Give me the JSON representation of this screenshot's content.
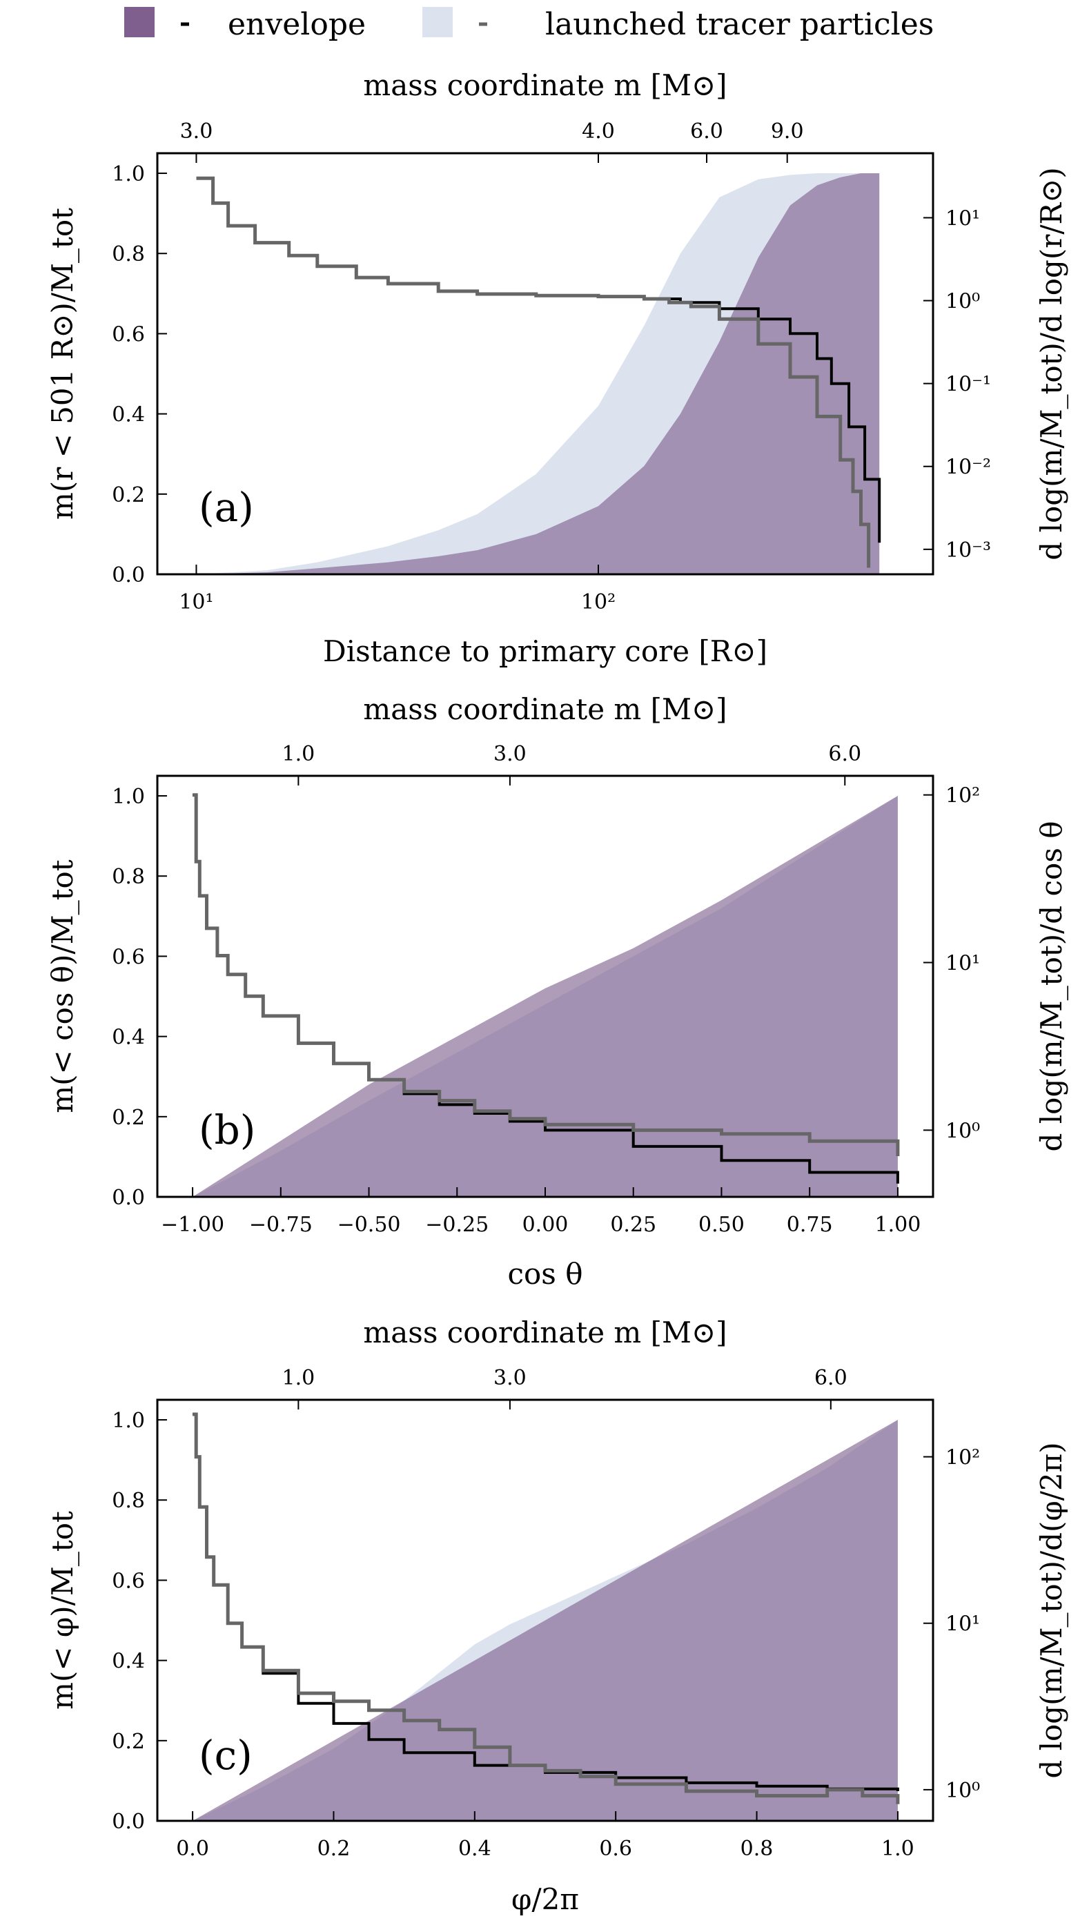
{
  "legend": [
    {
      "label": "envelope",
      "color": "#7e5f8e",
      "line_color": "#000000"
    },
    {
      "label": "launched tracer particles",
      "color": "#dce3ef",
      "line_color": "#666666"
    }
  ],
  "colors": {
    "envelope_fill": "#7e5f8e",
    "tracer_fill": "#dce3ef",
    "overlap_fill": "#9b93b7",
    "envelope_line": "#000000",
    "tracer_line": "#666666"
  },
  "chart_data": [
    {
      "id": "a",
      "type": "area",
      "panel_label": "(a)",
      "top_axis_label": "mass coordinate m [M⊙]",
      "top_ticks": [
        {
          "label": "3.0",
          "x": 10.0
        },
        {
          "label": "4.0",
          "x": 100.0
        },
        {
          "label": "6.0",
          "x": 186.0
        },
        {
          "label": "9.0",
          "x": 295.0
        }
      ],
      "xlabel": "Distance to primary core [R⊙]",
      "ylabel": "m(r < 501 R⊙)/M_tot",
      "y2label": "d log(m/M_tot)/d log(r/R⊙)",
      "xscale": "log",
      "xlim": [
        8.0,
        680.0
      ],
      "ylim": [
        0.0,
        1.05
      ],
      "y2lim": [
        0.0005,
        60.0
      ],
      "x_ticks": [
        {
          "value": 10,
          "label": "10¹"
        },
        {
          "value": 100,
          "label": "10²"
        }
      ],
      "y_ticks": [
        "0.0",
        "0.2",
        "0.4",
        "0.6",
        "0.8",
        "1.0"
      ],
      "y2_ticks": [
        {
          "value": 10,
          "label": "10¹"
        },
        {
          "value": 1,
          "label": "10⁰"
        },
        {
          "value": 0.1,
          "label": "10⁻¹"
        },
        {
          "value": 0.01,
          "label": "10⁻²"
        },
        {
          "value": 0.001,
          "label": "10⁻³"
        }
      ],
      "series": [
        {
          "name": "envelope cumulative",
          "kind": "fill",
          "fill": "#7e5f8e",
          "x": [
            10,
            15,
            20,
            30,
            40,
            50,
            70,
            100,
            130,
            160,
            200,
            250,
            300,
            350,
            400,
            450,
            500
          ],
          "y": [
            0.0,
            0.005,
            0.015,
            0.03,
            0.045,
            0.06,
            0.1,
            0.17,
            0.27,
            0.4,
            0.58,
            0.79,
            0.92,
            0.97,
            0.99,
            1.0,
            1.0
          ]
        },
        {
          "name": "tracer cumulative",
          "kind": "fill",
          "fill": "#dce3ef",
          "x": [
            10,
            15,
            20,
            30,
            40,
            50,
            70,
            100,
            130,
            160,
            200,
            250,
            300,
            350,
            400,
            450,
            500
          ],
          "y": [
            0.0,
            0.01,
            0.03,
            0.07,
            0.11,
            0.15,
            0.25,
            0.42,
            0.62,
            0.8,
            0.94,
            0.985,
            0.996,
            1.0,
            1.0,
            1.0,
            1.0
          ]
        },
        {
          "name": "envelope derivative",
          "kind": "line",
          "axis": "y2",
          "color": "#000000",
          "x": [
            10,
            11,
            12,
            14,
            17,
            20,
            25,
            30,
            40,
            50,
            70,
            100,
            130,
            160,
            200,
            250,
            300,
            350,
            380,
            420,
            460,
            500
          ],
          "y": [
            30,
            15,
            8,
            5,
            3.5,
            2.6,
            1.9,
            1.6,
            1.3,
            1.2,
            1.15,
            1.12,
            1.05,
            0.95,
            0.8,
            0.6,
            0.4,
            0.2,
            0.1,
            0.03,
            0.007,
            0.0012
          ]
        },
        {
          "name": "tracer derivative",
          "kind": "line",
          "axis": "y2",
          "color": "#666666",
          "x": [
            10,
            11,
            12,
            14,
            17,
            20,
            25,
            30,
            40,
            50,
            70,
            100,
            130,
            150,
            170,
            200,
            250,
            300,
            350,
            400,
            430,
            450,
            470
          ],
          "y": [
            30,
            15,
            8,
            5,
            3.5,
            2.6,
            1.9,
            1.6,
            1.3,
            1.2,
            1.15,
            1.12,
            1.05,
            0.95,
            0.85,
            0.6,
            0.3,
            0.12,
            0.04,
            0.012,
            0.005,
            0.002,
            0.0006
          ]
        }
      ]
    },
    {
      "id": "b",
      "type": "area",
      "panel_label": "(b)",
      "top_axis_label": "mass coordinate m [M⊙]",
      "top_ticks": [
        {
          "label": "1.0",
          "x": -0.7
        },
        {
          "label": "3.0",
          "x": -0.1
        },
        {
          "label": "6.0",
          "x": 0.85
        }
      ],
      "xlabel": "cos θ",
      "ylabel": "m(< cos θ)/M_tot",
      "y2label": "d log(m/M_tot)/d cos θ",
      "xscale": "linear",
      "xlim": [
        -1.1,
        1.1
      ],
      "ylim": [
        0.0,
        1.05
      ],
      "y2lim": [
        0.4,
        130.0
      ],
      "x_ticks": [
        {
          "value": -1.0,
          "label": "−1.00"
        },
        {
          "value": -0.75,
          "label": "−0.75"
        },
        {
          "value": -0.5,
          "label": "−0.50"
        },
        {
          "value": -0.25,
          "label": "−0.25"
        },
        {
          "value": 0.0,
          "label": "0.00"
        },
        {
          "value": 0.25,
          "label": "0.25"
        },
        {
          "value": 0.5,
          "label": "0.50"
        },
        {
          "value": 0.75,
          "label": "0.75"
        },
        {
          "value": 1.0,
          "label": "1.00"
        }
      ],
      "y_ticks": [
        "0.0",
        "0.2",
        "0.4",
        "0.6",
        "0.8",
        "1.0"
      ],
      "y2_ticks": [
        {
          "value": 100,
          "label": "10²"
        },
        {
          "value": 10,
          "label": "10¹"
        },
        {
          "value": 1,
          "label": "10⁰"
        }
      ],
      "series": [
        {
          "name": "envelope cumulative",
          "kind": "fill",
          "fill": "#7e5f8e",
          "x": [
            -1.0,
            -0.75,
            -0.5,
            -0.25,
            0.0,
            0.25,
            0.5,
            0.75,
            1.0
          ],
          "y": [
            0.0,
            0.14,
            0.28,
            0.4,
            0.52,
            0.62,
            0.74,
            0.87,
            1.0
          ]
        },
        {
          "name": "tracer cumulative",
          "kind": "fill",
          "fill": "#dce3ef",
          "x": [
            -1.0,
            -0.75,
            -0.5,
            -0.25,
            0.0,
            0.25,
            0.5,
            0.75,
            1.0
          ],
          "y": [
            0.0,
            0.115,
            0.24,
            0.36,
            0.48,
            0.6,
            0.72,
            0.86,
            1.0
          ]
        },
        {
          "name": "envelope derivative",
          "kind": "line",
          "axis": "y2",
          "color": "#000000",
          "x": [
            -1.0,
            -0.99,
            -0.98,
            -0.96,
            -0.93,
            -0.9,
            -0.85,
            -0.8,
            -0.7,
            -0.6,
            -0.5,
            -0.4,
            -0.3,
            -0.2,
            -0.1,
            0.0,
            0.25,
            0.5,
            0.75,
            1.0
          ],
          "y": [
            100,
            40,
            25,
            16,
            11,
            8.5,
            6.3,
            4.8,
            3.3,
            2.5,
            2.0,
            1.65,
            1.42,
            1.26,
            1.13,
            1.0,
            0.8,
            0.66,
            0.56,
            0.48
          ]
        },
        {
          "name": "tracer derivative",
          "kind": "line",
          "axis": "y2",
          "color": "#666666",
          "x": [
            -1.0,
            -0.99,
            -0.98,
            -0.96,
            -0.93,
            -0.9,
            -0.85,
            -0.8,
            -0.7,
            -0.6,
            -0.5,
            -0.4,
            -0.3,
            -0.2,
            -0.1,
            0.0,
            0.25,
            0.5,
            0.75,
            1.0
          ],
          "y": [
            100,
            40,
            25,
            16,
            11,
            8.5,
            6.3,
            4.8,
            3.3,
            2.5,
            2.0,
            1.7,
            1.5,
            1.3,
            1.17,
            1.08,
            1.0,
            0.95,
            0.86,
            0.7
          ]
        }
      ]
    },
    {
      "id": "c",
      "type": "area",
      "panel_label": "(c)",
      "top_axis_label": "mass coordinate m [M⊙]",
      "top_ticks": [
        {
          "label": "1.0",
          "x": 0.15
        },
        {
          "label": "3.0",
          "x": 0.45
        },
        {
          "label": "6.0",
          "x": 0.905
        }
      ],
      "xlabel": "φ/2π",
      "ylabel": "m(< φ)/M_tot",
      "y2label": "d log(m/M_tot)/d(φ/2π)",
      "xscale": "linear",
      "xlim": [
        -0.05,
        1.05
      ],
      "ylim": [
        0.0,
        1.05
      ],
      "y2lim": [
        0.65,
        220.0
      ],
      "x_ticks": [
        {
          "value": 0.0,
          "label": "0.0"
        },
        {
          "value": 0.2,
          "label": "0.2"
        },
        {
          "value": 0.4,
          "label": "0.4"
        },
        {
          "value": 0.6,
          "label": "0.6"
        },
        {
          "value": 0.8,
          "label": "0.8"
        },
        {
          "value": 1.0,
          "label": "1.0"
        }
      ],
      "y_ticks": [
        "0.0",
        "0.2",
        "0.4",
        "0.6",
        "0.8",
        "1.0"
      ],
      "y2_ticks": [
        {
          "value": 100,
          "label": "10²"
        },
        {
          "value": 10,
          "label": "10¹"
        },
        {
          "value": 1,
          "label": "10⁰"
        }
      ],
      "series": [
        {
          "name": "envelope cumulative",
          "kind": "fill",
          "fill": "#7e5f8e",
          "x": [
            0.0,
            0.1,
            0.2,
            0.3,
            0.4,
            0.5,
            0.6,
            0.7,
            0.8,
            0.9,
            1.0
          ],
          "y": [
            0.0,
            0.1,
            0.2,
            0.3,
            0.4,
            0.5,
            0.6,
            0.7,
            0.8,
            0.9,
            1.0
          ]
        },
        {
          "name": "tracer cumulative",
          "kind": "fill",
          "fill": "#dce3ef",
          "x": [
            0.0,
            0.1,
            0.2,
            0.3,
            0.4,
            0.45,
            0.5,
            0.6,
            0.7,
            0.8,
            0.9,
            1.0
          ],
          "y": [
            0.0,
            0.085,
            0.18,
            0.3,
            0.44,
            0.49,
            0.53,
            0.61,
            0.69,
            0.78,
            0.88,
            1.0
          ]
        },
        {
          "name": "envelope derivative",
          "kind": "line",
          "axis": "y2",
          "color": "#000000",
          "x": [
            0.0,
            0.005,
            0.01,
            0.02,
            0.03,
            0.05,
            0.07,
            0.1,
            0.15,
            0.2,
            0.25,
            0.3,
            0.4,
            0.5,
            0.6,
            0.7,
            0.8,
            0.9,
            1.0
          ],
          "y": [
            180,
            100,
            50,
            25,
            17,
            10,
            7.2,
            5.0,
            3.3,
            2.5,
            2.0,
            1.67,
            1.4,
            1.27,
            1.18,
            1.1,
            1.05,
            1.01,
            0.98
          ]
        },
        {
          "name": "tracer derivative",
          "kind": "line",
          "axis": "y2",
          "color": "#666666",
          "x": [
            0.0,
            0.005,
            0.01,
            0.02,
            0.03,
            0.05,
            0.07,
            0.1,
            0.15,
            0.2,
            0.25,
            0.3,
            0.35,
            0.4,
            0.45,
            0.5,
            0.55,
            0.6,
            0.7,
            0.8,
            0.9,
            0.95,
            1.0
          ],
          "y": [
            180,
            100,
            50,
            25,
            17,
            10,
            7.2,
            5.2,
            3.8,
            3.4,
            3.0,
            2.6,
            2.3,
            1.8,
            1.4,
            1.3,
            1.2,
            1.08,
            0.98,
            0.92,
            1.0,
            0.92,
            0.82
          ]
        }
      ]
    }
  ]
}
